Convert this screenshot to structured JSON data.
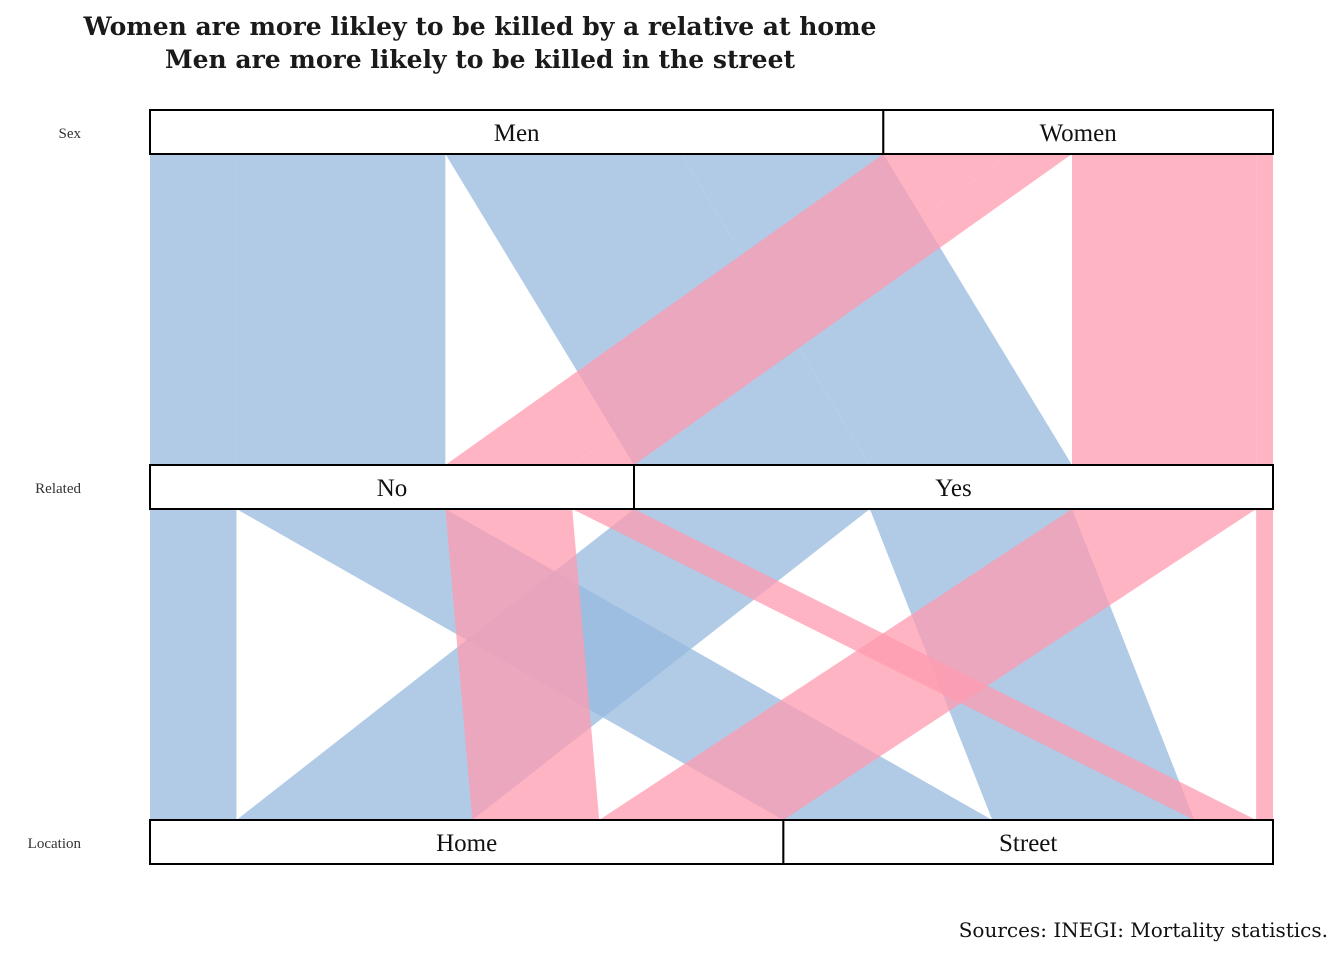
{
  "title_line1": "Women are more likley to be killed by a relative at home",
  "title_line2": "Men are more likely to be killed in the street",
  "source": "Sources: INEGI: Mortality statistics.",
  "chart_data": {
    "type": "parallel_sets",
    "axes": [
      {
        "name": "Sex",
        "categories": [
          "Men",
          "Women"
        ]
      },
      {
        "name": "Related",
        "categories": [
          "No",
          "Yes"
        ]
      },
      {
        "name": "Location",
        "categories": [
          "Home",
          "Street"
        ]
      }
    ],
    "colors": {
      "Men": "#97BADF",
      "Women": "#FF9BB0"
    },
    "flows": [
      {
        "sex": "Men",
        "related": "No",
        "location": "Home",
        "value": 7.7
      },
      {
        "sex": "Men",
        "related": "No",
        "location": "Street",
        "value": 18.6
      },
      {
        "sex": "Men",
        "related": "Yes",
        "location": "Home",
        "value": 21.0
      },
      {
        "sex": "Men",
        "related": "Yes",
        "location": "Street",
        "value": 18.0
      },
      {
        "sex": "Women",
        "related": "No",
        "location": "Home",
        "value": 11.3
      },
      {
        "sex": "Women",
        "related": "No",
        "location": "Street",
        "value": 5.5
      },
      {
        "sex": "Women",
        "related": "Yes",
        "location": "Home",
        "value": 16.4
      },
      {
        "sex": "Women",
        "related": "Yes",
        "location": "Street",
        "value": 1.5
      }
    ]
  }
}
